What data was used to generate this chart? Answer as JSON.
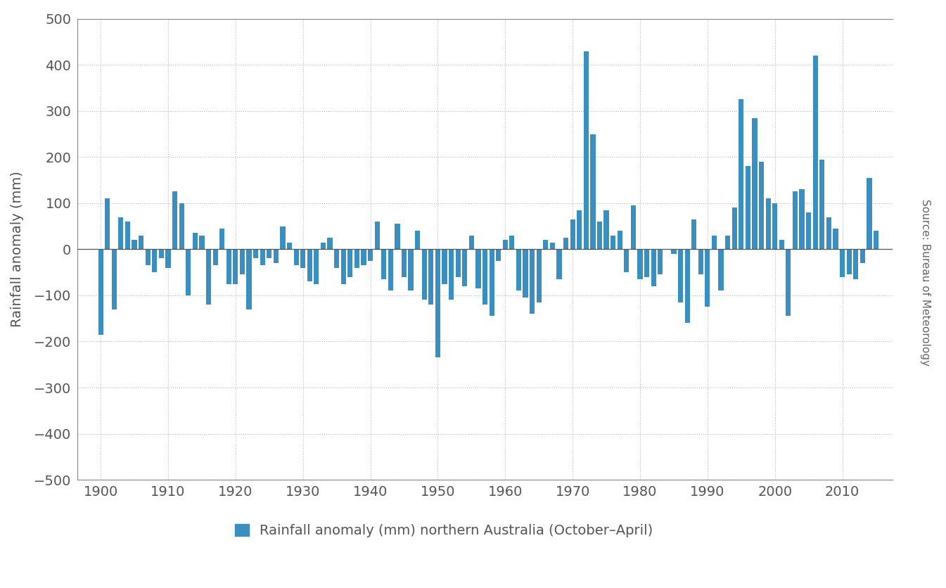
{
  "years": [
    1900,
    1901,
    1902,
    1903,
    1904,
    1905,
    1906,
    1907,
    1908,
    1909,
    1910,
    1911,
    1912,
    1913,
    1914,
    1915,
    1916,
    1917,
    1918,
    1919,
    1920,
    1921,
    1922,
    1923,
    1924,
    1925,
    1926,
    1927,
    1928,
    1929,
    1930,
    1931,
    1932,
    1933,
    1934,
    1935,
    1936,
    1937,
    1938,
    1939,
    1940,
    1941,
    1942,
    1943,
    1944,
    1945,
    1946,
    1947,
    1948,
    1949,
    1950,
    1951,
    1952,
    1953,
    1954,
    1955,
    1956,
    1957,
    1958,
    1959,
    1960,
    1961,
    1962,
    1963,
    1964,
    1965,
    1966,
    1967,
    1968,
    1969,
    1970,
    1971,
    1972,
    1973,
    1974,
    1975,
    1976,
    1977,
    1978,
    1979,
    1980,
    1981,
    1982,
    1983,
    1984,
    1985,
    1986,
    1987,
    1988,
    1989,
    1990,
    1991,
    1992,
    1993,
    1994,
    1995,
    1996,
    1997,
    1998,
    1999,
    2000,
    2001,
    2002,
    2003,
    2004,
    2005,
    2006,
    2007,
    2008,
    2009,
    2010,
    2011,
    2012,
    2013,
    2014,
    2015,
    2016
  ],
  "values": [
    -185,
    110,
    -130,
    70,
    60,
    20,
    30,
    -35,
    -50,
    -20,
    -40,
    125,
    100,
    -100,
    35,
    30,
    -120,
    -35,
    45,
    -75,
    -75,
    -55,
    -130,
    -20,
    -35,
    -20,
    -30,
    50,
    15,
    -35,
    -40,
    -70,
    -75,
    15,
    25,
    -40,
    -75,
    -60,
    -40,
    -35,
    -25,
    60,
    -65,
    -90,
    55,
    -60,
    -90,
    40,
    -110,
    -120,
    -235,
    -75,
    -110,
    -60,
    -80,
    30,
    -85,
    -120,
    -145,
    -25,
    20,
    30,
    -90,
    -105,
    -140,
    -115,
    20,
    15,
    -65,
    25,
    65,
    85,
    430,
    250,
    60,
    85,
    30,
    40,
    -50,
    95,
    -65,
    -60,
    -80,
    -55,
    0,
    -10,
    -115,
    -160,
    65,
    -55,
    -125,
    30,
    -90,
    30,
    90,
    325,
    180,
    285,
    190,
    110,
    100,
    20,
    -145,
    125,
    130,
    80,
    420,
    195,
    70,
    45,
    -60,
    -55,
    -65,
    -30,
    155,
    40,
    0
  ],
  "bar_color": "#3b8fc0",
  "ylabel": "Rainfall anomaly (mm)",
  "source_text": "Source: Bureau of Meteorology",
  "legend_label": "Rainfall anomaly (mm) northern Australia (October–April)",
  "ylim": [
    -500,
    500
  ],
  "yticks": [
    -500,
    -400,
    -300,
    -200,
    -100,
    0,
    100,
    200,
    300,
    400,
    500
  ],
  "ytick_labels": [
    "−500",
    "−400",
    "−300",
    "−200",
    "−100",
    "0",
    "100",
    "200",
    "300",
    "400",
    "500"
  ],
  "background_color": "#ffffff",
  "plot_bg_color": "#ffffff",
  "grid_color": "#bbbbbb",
  "spine_color": "#888888",
  "zero_line_color": "#555555",
  "tick_color": "#555555",
  "label_color": "#555555",
  "source_color": "#666666"
}
